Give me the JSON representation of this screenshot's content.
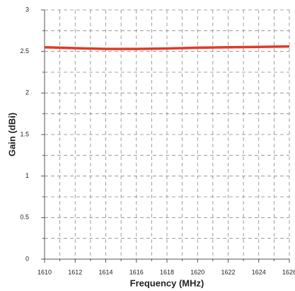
{
  "chart_data": {
    "type": "line",
    "x_label": "Frequency (MHz)",
    "y_label": "Gain (dBi)",
    "x": [
      1610,
      1612,
      1614,
      1616,
      1618,
      1620,
      1622,
      1624,
      1626
    ],
    "series": [
      {
        "name": "Gain",
        "color": "#e23a2a",
        "values": [
          2.55,
          2.54,
          2.53,
          2.53,
          2.535,
          2.545,
          2.55,
          2.555,
          2.56
        ]
      }
    ],
    "xlim": [
      1610,
      1626
    ],
    "xticks": [
      1610,
      1612,
      1614,
      1616,
      1618,
      1620,
      1622,
      1624,
      1626
    ],
    "ylim": [
      0,
      3
    ],
    "yticks": [
      0,
      0.5,
      1,
      1.5,
      2,
      2.5,
      3
    ],
    "grid": true,
    "minor_grid": true
  }
}
